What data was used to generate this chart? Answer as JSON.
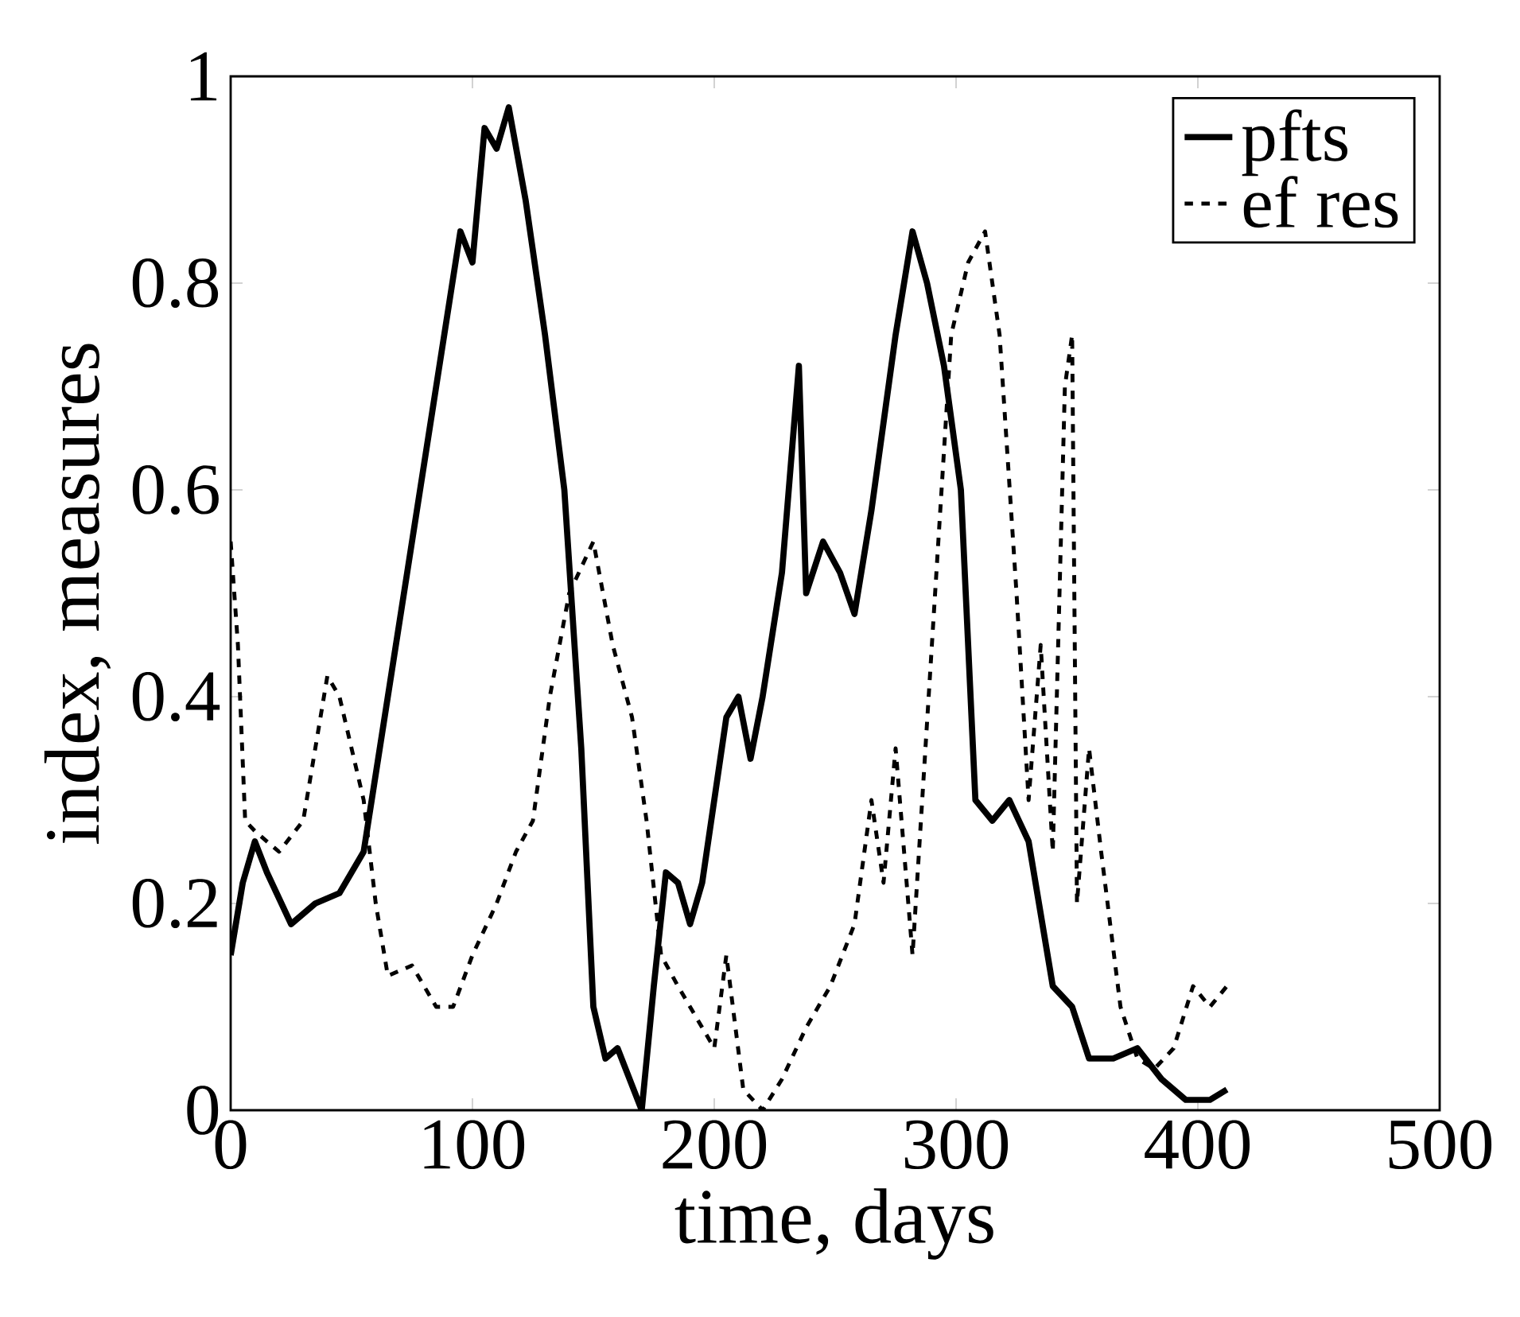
{
  "chart_data": {
    "type": "line",
    "xlabel": "time, days",
    "ylabel": "index, measures",
    "xlim": [
      0,
      500
    ],
    "ylim": [
      0,
      1
    ],
    "xticks": [
      0,
      100,
      200,
      300,
      400,
      500
    ],
    "yticks": [
      0,
      0.2,
      0.4,
      0.6,
      0.8,
      1
    ],
    "legend": "top right",
    "grid": false,
    "series": [
      {
        "name": "pfts",
        "color": "#000000",
        "line_style": "solid",
        "x": [
          0,
          5,
          10,
          15,
          25,
          35,
          45,
          55,
          65,
          75,
          85,
          95,
          100,
          105,
          110,
          115,
          122,
          130,
          138,
          145,
          150,
          155,
          160,
          165,
          170,
          175,
          180,
          185,
          190,
          195,
          205,
          210,
          215,
          220,
          228,
          235,
          238,
          245,
          252,
          258,
          265,
          275,
          282,
          288,
          295,
          302,
          308,
          315,
          322,
          330,
          340,
          348,
          355,
          365,
          375,
          385,
          395,
          405,
          412
        ],
        "values": [
          0.15,
          0.22,
          0.26,
          0.23,
          0.18,
          0.2,
          0.21,
          0.25,
          0.4,
          0.55,
          0.7,
          0.85,
          0.82,
          0.95,
          0.93,
          0.97,
          0.88,
          0.75,
          0.6,
          0.35,
          0.1,
          0.05,
          0.06,
          0.03,
          0.0,
          0.12,
          0.23,
          0.22,
          0.18,
          0.22,
          0.38,
          0.4,
          0.34,
          0.4,
          0.52,
          0.72,
          0.5,
          0.55,
          0.52,
          0.48,
          0.58,
          0.75,
          0.85,
          0.8,
          0.72,
          0.6,
          0.3,
          0.28,
          0.3,
          0.26,
          0.12,
          0.1,
          0.05,
          0.05,
          0.06,
          0.03,
          0.01,
          0.01,
          0.02
        ]
      },
      {
        "name": "ef res",
        "color": "#000000",
        "line_style": "dashed",
        "x": [
          0,
          3,
          6,
          10,
          20,
          30,
          40,
          45,
          55,
          60,
          65,
          75,
          85,
          92,
          100,
          110,
          118,
          125,
          132,
          140,
          150,
          158,
          166,
          172,
          178,
          185,
          195,
          200,
          205,
          212,
          220,
          228,
          238,
          248,
          258,
          265,
          270,
          275,
          282,
          290,
          298,
          305,
          312,
          318,
          325,
          330,
          335,
          340,
          345,
          348,
          350,
          355,
          360,
          368,
          375,
          382,
          390,
          398,
          405,
          412
        ],
        "values": [
          0.55,
          0.45,
          0.28,
          0.27,
          0.25,
          0.28,
          0.42,
          0.4,
          0.3,
          0.2,
          0.13,
          0.14,
          0.1,
          0.1,
          0.15,
          0.2,
          0.25,
          0.28,
          0.4,
          0.5,
          0.55,
          0.45,
          0.38,
          0.28,
          0.15,
          0.12,
          0.08,
          0.06,
          0.15,
          0.02,
          0.0,
          0.03,
          0.08,
          0.12,
          0.18,
          0.3,
          0.22,
          0.35,
          0.15,
          0.45,
          0.75,
          0.82,
          0.85,
          0.75,
          0.5,
          0.3,
          0.45,
          0.25,
          0.7,
          0.75,
          0.2,
          0.35,
          0.25,
          0.1,
          0.05,
          0.04,
          0.06,
          0.12,
          0.1,
          0.12
        ]
      }
    ]
  }
}
